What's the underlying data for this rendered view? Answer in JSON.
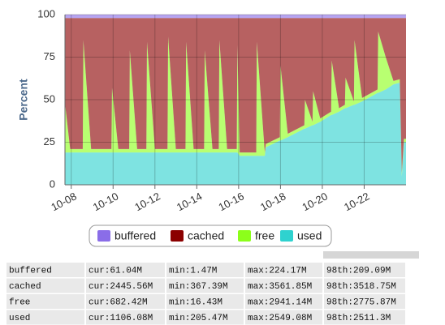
{
  "chart_data": {
    "type": "area",
    "stacked": true,
    "ylabel": "Percent",
    "x": [
      7.7,
      7.95,
      8.55,
      8.58,
      8.95,
      9.92,
      9.95,
      10.25,
      10.77,
      10.8,
      11.15,
      11.59,
      11.62,
      12.0,
      12.6,
      12.63,
      13.0,
      13.46,
      13.49,
      13.85,
      14.35,
      14.38,
      14.75,
      15.05,
      15.08,
      15.45,
      15.91,
      15.94,
      16.05,
      16.84,
      16.87,
      17.25,
      17.3,
      17.97,
      18.0,
      18.35,
      19.14,
      19.17,
      19.53,
      19.56,
      19.9,
      20.42,
      20.45,
      20.8,
      21.08,
      21.11,
      21.51,
      21.54,
      21.9,
      22.64,
      22.67,
      23.03,
      23.4,
      23.7,
      23.8,
      23.9,
      24.0
    ],
    "xlim": [
      7.7,
      24.0
    ],
    "xticks": [
      {
        "value": 8,
        "label": "10-08"
      },
      {
        "value": 10,
        "label": "10-10"
      },
      {
        "value": 12,
        "label": "10-12"
      },
      {
        "value": 14,
        "label": "10-14"
      },
      {
        "value": 16,
        "label": "10-16"
      },
      {
        "value": 18,
        "label": "10-18"
      },
      {
        "value": 20,
        "label": "10-20"
      },
      {
        "value": 22,
        "label": "10-22"
      }
    ],
    "ylim": [
      0,
      100
    ],
    "yticks": [
      0,
      25,
      50,
      75,
      100
    ],
    "grid": true,
    "series": [
      {
        "name": "buffered",
        "color": "#8a6de8",
        "values": [
          2,
          2,
          2,
          2,
          2,
          2,
          2,
          2,
          2,
          2,
          2,
          2,
          2,
          2,
          2,
          2,
          2,
          2,
          2,
          2,
          2,
          2,
          2,
          2,
          2,
          2,
          2,
          2,
          2,
          2,
          2,
          2,
          2,
          2,
          2,
          2,
          2,
          2,
          2,
          2,
          2,
          2,
          2,
          2,
          2,
          2,
          2,
          2,
          2,
          2,
          2,
          2,
          2,
          2,
          2,
          2,
          2
        ]
      },
      {
        "name": "cached",
        "color": "#8b0000",
        "values": [
          50,
          77,
          77,
          13,
          77,
          77,
          41,
          77,
          77,
          19,
          77,
          77,
          14,
          77,
          77,
          11,
          77,
          77,
          14,
          77,
          77,
          19,
          77,
          77,
          13,
          77,
          77,
          16,
          79,
          79,
          14,
          79,
          74,
          70,
          28,
          68,
          63,
          48,
          61,
          43,
          59,
          55,
          25,
          53,
          51,
          35,
          49,
          13,
          47,
          42,
          8,
          23,
          37,
          36,
          91,
          71,
          71
        ]
      },
      {
        "name": "free",
        "color": "#8cff1a",
        "values": [
          29,
          2,
          2,
          66,
          2,
          2,
          38,
          2,
          2,
          60,
          2,
          2,
          65,
          2,
          2,
          68,
          2,
          2,
          65,
          2,
          2,
          60,
          2,
          2,
          66,
          2,
          2,
          63,
          2,
          2,
          67,
          2,
          2,
          2,
          44,
          2,
          2,
          17,
          2,
          20,
          2,
          2,
          32,
          2,
          2,
          18,
          2,
          38,
          2,
          2,
          36,
          19,
          2,
          2,
          2,
          2,
          2
        ]
      },
      {
        "name": "used",
        "color": "#2fd2cf",
        "values": [
          19,
          19,
          19,
          19,
          19,
          19,
          19,
          19,
          19,
          19,
          19,
          19,
          19,
          19,
          19,
          19,
          19,
          19,
          19,
          19,
          19,
          19,
          19,
          19,
          19,
          19,
          19,
          19,
          17,
          17,
          17,
          17,
          22,
          26,
          26,
          28,
          33,
          33,
          35,
          35,
          37,
          41,
          41,
          43,
          45,
          45,
          47,
          47,
          49,
          54,
          54,
          56,
          59,
          60,
          5,
          25,
          25
        ]
      }
    ]
  },
  "table": {
    "rows": [
      [
        "buffered",
        "cur:61.04M",
        "min:1.47M",
        "max:224.17M",
        "98th:209.09M"
      ],
      [
        "cached",
        "cur:2445.56M",
        "min:367.39M",
        "max:3561.85M",
        "98th:3518.75M"
      ],
      [
        "free",
        "cur:682.42M",
        "min:16.43M",
        "max:2941.14M",
        "98th:2775.87M"
      ],
      [
        "used",
        "cur:1106.08M",
        "min:205.47M",
        "max:2549.08M",
        "98th:2511.3M"
      ]
    ]
  }
}
